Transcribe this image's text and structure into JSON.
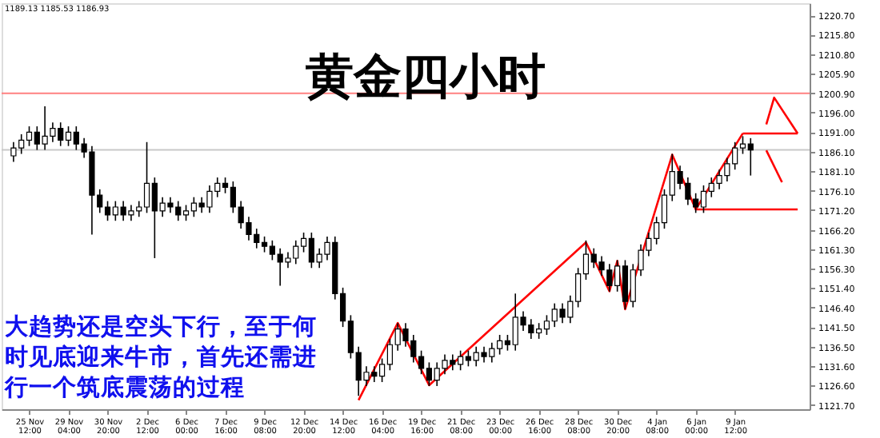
{
  "chart_data": {
    "type": "candlestick",
    "title": "黄金四小时",
    "annotations": [
      "1189.13 1185.53 1186.93",
      "大趋势还是空头下行，至于何时见底迎来牛市，首先还需进行一个筑底震荡的过程"
    ],
    "categories": [
      null,
      null,
      "25 Nov 12:00",
      null,
      null,
      null,
      null,
      "29 Nov 04:00",
      null,
      null,
      null,
      null,
      "30 Nov 20:00",
      null,
      null,
      null,
      null,
      "2 Dec 12:00",
      null,
      null,
      null,
      null,
      "6 Dec 00:00",
      null,
      null,
      null,
      null,
      "7 Dec 16:00",
      null,
      null,
      null,
      null,
      "9 Dec 08:00",
      null,
      null,
      null,
      null,
      "12 Dec 20:00",
      null,
      null,
      null,
      null,
      "14 Dec 12:00",
      null,
      null,
      null,
      null,
      "16 Dec 04:00",
      null,
      null,
      null,
      null,
      "19 Dec 16:00",
      null,
      null,
      null,
      null,
      "21 Dec 08:00",
      null,
      null,
      null,
      null,
      "23 Dec 00:00",
      null,
      null,
      null,
      null,
      "26 Dec 16:00",
      null,
      null,
      null,
      null,
      "28 Dec 08:00",
      null,
      null,
      null,
      null,
      "30 Dec 20:00",
      null,
      null,
      null,
      null,
      "4 Jan 08:00",
      null,
      null,
      null,
      null,
      "6 Jan 00:00",
      null,
      null,
      null,
      null,
      "9 Jan 12:00",
      null,
      null,
      null,
      null,
      null,
      null,
      null,
      null
    ],
    "ohlc": [
      [
        1185,
        1188.5,
        1183.5,
        1187
      ],
      [
        1187,
        1190.5,
        1185.5,
        1189
      ],
      [
        1189,
        1192.5,
        1187.5,
        1191
      ],
      [
        1191,
        1192.5,
        1186.5,
        1188
      ],
      [
        1188,
        1197.6,
        1186.5,
        1190
      ],
      [
        1190,
        1193.5,
        1188.5,
        1192
      ],
      [
        1192,
        1193.5,
        1187.5,
        1189
      ],
      [
        1189,
        1192.5,
        1187.5,
        1191
      ],
      [
        1191,
        1192.5,
        1186.5,
        1188
      ],
      [
        1188,
        1189.5,
        1184.5,
        1186
      ],
      [
        1186,
        1187.5,
        1165,
        1175
      ],
      [
        1175,
        1176.5,
        1170.5,
        1172
      ],
      [
        1172,
        1173.5,
        1168.5,
        1170
      ],
      [
        1170,
        1173.5,
        1168.5,
        1172
      ],
      [
        1172,
        1173.5,
        1168.5,
        1170
      ],
      [
        1170,
        1172.5,
        1168.5,
        1171
      ],
      [
        1171,
        1173.5,
        1169.5,
        1172
      ],
      [
        1172,
        1188.5,
        1170.5,
        1178
      ],
      [
        1178,
        1179.5,
        1159,
        1171
      ],
      [
        1171,
        1174.5,
        1169.5,
        1173
      ],
      [
        1173,
        1174.5,
        1170.5,
        1172
      ],
      [
        1172,
        1173.5,
        1168.5,
        1170
      ],
      [
        1170,
        1172.5,
        1168.5,
        1171
      ],
      [
        1171,
        1174.5,
        1169.5,
        1173
      ],
      [
        1173,
        1174.5,
        1170.5,
        1172
      ],
      [
        1172,
        1177.5,
        1170.5,
        1176
      ],
      [
        1176,
        1179.5,
        1174.5,
        1178
      ],
      [
        1178,
        1179.5,
        1175.5,
        1177
      ],
      [
        1177,
        1178.5,
        1170.5,
        1172
      ],
      [
        1172,
        1173.5,
        1166.5,
        1168
      ],
      [
        1168,
        1169.5,
        1163.5,
        1165
      ],
      [
        1165,
        1166.5,
        1161.5,
        1163
      ],
      [
        1163,
        1164.5,
        1160.5,
        1162
      ],
      [
        1162,
        1163.5,
        1158.5,
        1160
      ],
      [
        1160,
        1161.5,
        1152,
        1158
      ],
      [
        1158,
        1160.5,
        1156.5,
        1159
      ],
      [
        1159,
        1163.5,
        1157.5,
        1162
      ],
      [
        1162,
        1165.5,
        1160.5,
        1164
      ],
      [
        1164,
        1165.5,
        1156.5,
        1158
      ],
      [
        1158,
        1161.5,
        1156.5,
        1160
      ],
      [
        1160,
        1164.5,
        1158.5,
        1163
      ],
      [
        1163,
        1164.5,
        1148.5,
        1150
      ],
      [
        1150,
        1151.5,
        1141.5,
        1143
      ],
      [
        1143,
        1144.5,
        1133.5,
        1135
      ],
      [
        1135,
        1136.5,
        1124,
        1128
      ],
      [
        1128,
        1131.5,
        1126.5,
        1130
      ],
      [
        1130,
        1131.5,
        1127.5,
        1129
      ],
      [
        1129,
        1133.5,
        1127.5,
        1132
      ],
      [
        1132,
        1138.5,
        1130.5,
        1137
      ],
      [
        1137,
        1142.5,
        1135.5,
        1141
      ],
      [
        1141,
        1142.5,
        1136.5,
        1138
      ],
      [
        1138,
        1139.5,
        1132.5,
        1134
      ],
      [
        1134,
        1135.5,
        1129.5,
        1131
      ],
      [
        1131,
        1132.5,
        1126.5,
        1128
      ],
      [
        1128,
        1132.5,
        1126.5,
        1131
      ],
      [
        1131,
        1134.5,
        1129.5,
        1133
      ],
      [
        1133,
        1134.5,
        1130.5,
        1132
      ],
      [
        1132,
        1135.5,
        1130.5,
        1134
      ],
      [
        1134,
        1135.5,
        1131.5,
        1133
      ],
      [
        1133,
        1136.5,
        1131.5,
        1135
      ],
      [
        1135,
        1136.5,
        1132.5,
        1134
      ],
      [
        1134,
        1137.5,
        1132.5,
        1136
      ],
      [
        1136,
        1139.5,
        1134.5,
        1138
      ],
      [
        1138,
        1139.5,
        1135.5,
        1137
      ],
      [
        1137,
        1150,
        1135.5,
        1144
      ],
      [
        1144,
        1145.5,
        1140.5,
        1142
      ],
      [
        1142,
        1143.5,
        1138.5,
        1140
      ],
      [
        1140,
        1142.5,
        1138.5,
        1141
      ],
      [
        1141,
        1144.5,
        1139.5,
        1143
      ],
      [
        1143,
        1147.5,
        1141.5,
        1146
      ],
      [
        1146,
        1147.5,
        1142.5,
        1144
      ],
      [
        1144,
        1149.5,
        1142.5,
        1148
      ],
      [
        1148,
        1156.5,
        1146.5,
        1155
      ],
      [
        1155,
        1163.5,
        1153.5,
        1160
      ],
      [
        1160,
        1161.5,
        1156.5,
        1158
      ],
      [
        1158,
        1159.5,
        1154.5,
        1156
      ],
      [
        1156,
        1157.5,
        1150.5,
        1152
      ],
      [
        1152,
        1158.5,
        1150.5,
        1157
      ],
      [
        1157,
        1158.5,
        1146,
        1148
      ],
      [
        1148,
        1157.5,
        1146.5,
        1156
      ],
      [
        1156,
        1162.5,
        1154.5,
        1161
      ],
      [
        1161,
        1165.5,
        1159.5,
        1164
      ],
      [
        1164,
        1169.5,
        1162.5,
        1168
      ],
      [
        1168,
        1176.5,
        1166.5,
        1175
      ],
      [
        1175,
        1185.5,
        1173.5,
        1181
      ],
      [
        1181,
        1182.5,
        1176.5,
        1178
      ],
      [
        1178,
        1179.5,
        1172.5,
        1174
      ],
      [
        1174,
        1175.5,
        1170.5,
        1172
      ],
      [
        1172,
        1177.5,
        1170.5,
        1176
      ],
      [
        1176,
        1179.5,
        1174.5,
        1178
      ],
      [
        1178,
        1181.5,
        1176.5,
        1180
      ],
      [
        1180,
        1184.5,
        1178.5,
        1183
      ],
      [
        1183,
        1188.5,
        1181.5,
        1187
      ],
      [
        1187,
        1190,
        1185.5,
        1188
      ],
      [
        1188,
        1189.5,
        1180,
        1186.5
      ],
      null,
      null,
      null,
      null,
      null,
      null
    ],
    "series": [
      {
        "type": "line",
        "color": "#ff0000",
        "values": [
          null,
          null,
          null,
          null,
          null,
          null,
          null,
          null,
          null,
          null,
          null,
          null,
          null,
          null,
          null,
          null,
          null,
          null,
          null,
          null,
          null,
          null,
          null,
          null,
          null,
          null,
          null,
          null,
          null,
          null,
          null,
          null,
          null,
          null,
          null,
          null,
          null,
          null,
          null,
          null,
          null,
          null,
          null,
          null,
          1122.9,
          null,
          null,
          null,
          null,
          1142.5,
          null,
          null,
          null,
          1126.7,
          null,
          null,
          null,
          null,
          null,
          null,
          null,
          null,
          null,
          null,
          null,
          null,
          null,
          null,
          null,
          null,
          null,
          null,
          null,
          1163,
          null,
          null,
          1150.6,
          1158.3,
          1146,
          null,
          null,
          null,
          null,
          null,
          1185.3,
          null,
          null,
          1171.4,
          null,
          null,
          null,
          null,
          null,
          1190.7,
          null,
          null,
          null,
          null,
          null,
          null,
          null
        ]
      },
      {
        "type": "line",
        "color": "#ff0000",
        "values": [
          null,
          null,
          null,
          null,
          null,
          null,
          null,
          null,
          null,
          null,
          null,
          null,
          null,
          null,
          null,
          null,
          null,
          null,
          null,
          null,
          null,
          null,
          null,
          null,
          null,
          null,
          null,
          null,
          null,
          null,
          null,
          null,
          null,
          null,
          null,
          null,
          null,
          null,
          null,
          null,
          null,
          null,
          null,
          null,
          null,
          null,
          null,
          null,
          null,
          null,
          null,
          null,
          null,
          null,
          null,
          null,
          null,
          null,
          null,
          null,
          null,
          null,
          null,
          null,
          null,
          null,
          null,
          null,
          null,
          null,
          null,
          null,
          null,
          null,
          null,
          null,
          null,
          null,
          null,
          null,
          null,
          null,
          null,
          null,
          null,
          null,
          null,
          null,
          null,
          null,
          null,
          null,
          null,
          1190.7,
          null,
          null,
          null,
          null,
          null,
          null,
          1190.7
        ]
      },
      {
        "type": "line",
        "color": "#ff0000",
        "values": [
          null,
          null,
          null,
          null,
          null,
          null,
          null,
          null,
          null,
          null,
          null,
          null,
          null,
          null,
          null,
          null,
          null,
          null,
          null,
          null,
          null,
          null,
          null,
          null,
          null,
          null,
          null,
          null,
          null,
          null,
          null,
          null,
          null,
          null,
          null,
          null,
          null,
          null,
          null,
          null,
          null,
          null,
          null,
          null,
          null,
          null,
          null,
          null,
          null,
          null,
          null,
          null,
          null,
          null,
          null,
          null,
          null,
          null,
          null,
          null,
          null,
          null,
          null,
          null,
          null,
          null,
          null,
          null,
          null,
          null,
          null,
          null,
          null,
          null,
          null,
          null,
          null,
          null,
          null,
          null,
          null,
          null,
          null,
          null,
          null,
          null,
          null,
          1171.4,
          null,
          null,
          null,
          null,
          null,
          null,
          null,
          null,
          null,
          null,
          null,
          null,
          1171.4
        ]
      },
      {
        "type": "line",
        "color": "#ff0000",
        "values": [
          null,
          null,
          null,
          null,
          null,
          null,
          null,
          null,
          null,
          null,
          null,
          null,
          null,
          null,
          null,
          null,
          null,
          null,
          null,
          null,
          null,
          null,
          null,
          null,
          null,
          null,
          null,
          null,
          null,
          null,
          null,
          null,
          null,
          null,
          null,
          null,
          null,
          null,
          null,
          null,
          null,
          null,
          null,
          null,
          null,
          null,
          null,
          null,
          null,
          null,
          null,
          null,
          null,
          null,
          null,
          null,
          null,
          null,
          null,
          null,
          null,
          null,
          null,
          null,
          null,
          null,
          null,
          null,
          null,
          null,
          null,
          null,
          null,
          null,
          null,
          null,
          null,
          null,
          null,
          null,
          null,
          null,
          null,
          null,
          null,
          null,
          null,
          null,
          null,
          null,
          null,
          null,
          null,
          null,
          null,
          null,
          1193,
          1199.8,
          null,
          null,
          1190.7
        ]
      },
      {
        "type": "line",
        "color": "#ff0000",
        "values": [
          null,
          null,
          null,
          null,
          null,
          null,
          null,
          null,
          null,
          null,
          null,
          null,
          null,
          null,
          null,
          null,
          null,
          null,
          null,
          null,
          null,
          null,
          null,
          null,
          null,
          null,
          null,
          null,
          null,
          null,
          null,
          null,
          null,
          null,
          null,
          null,
          null,
          null,
          null,
          null,
          null,
          null,
          null,
          null,
          null,
          null,
          null,
          null,
          null,
          null,
          null,
          null,
          null,
          null,
          null,
          null,
          null,
          null,
          null,
          null,
          null,
          null,
          null,
          null,
          null,
          null,
          null,
          null,
          null,
          null,
          null,
          null,
          null,
          null,
          null,
          null,
          null,
          null,
          null,
          null,
          null,
          null,
          null,
          null,
          null,
          null,
          null,
          null,
          null,
          null,
          null,
          null,
          null,
          null,
          null,
          null,
          1186.4,
          null,
          1178.3,
          null,
          null
        ]
      }
    ],
    "ref_lines": [
      {
        "axis": "y",
        "value": 1200.9,
        "color": "#ff8080"
      },
      {
        "axis": "y",
        "value": 1186.5,
        "color": "#c8c8c8"
      }
    ],
    "ylim": [
      1120.6,
      1223.8
    ],
    "yticks": [
      {
        "value": 1220.7,
        "label": "1220.70"
      },
      {
        "value": 1215.8,
        "label": "1215.80"
      },
      {
        "value": 1210.8,
        "label": "1210.80"
      },
      {
        "value": 1205.9,
        "label": "1205.90"
      },
      {
        "value": 1200.9,
        "label": "1200.90"
      },
      {
        "value": 1196.0,
        "label": "1196.00"
      },
      {
        "value": 1191.0,
        "label": "1191.00"
      },
      {
        "value": 1186.1,
        "label": "1186.10"
      },
      {
        "value": 1181.1,
        "label": "1181.10"
      },
      {
        "value": 1176.1,
        "label": "1176.10"
      },
      {
        "value": 1171.2,
        "label": "1171.20"
      },
      {
        "value": 1166.2,
        "label": "1166.20"
      },
      {
        "value": 1161.3,
        "label": "1161.30"
      },
      {
        "value": 1156.3,
        "label": "1156.30"
      },
      {
        "value": 1151.4,
        "label": "1151.40"
      },
      {
        "value": 1146.4,
        "label": "1146.40"
      },
      {
        "value": 1141.5,
        "label": "1141.50"
      },
      {
        "value": 1136.5,
        "label": "1136.50"
      },
      {
        "value": 1131.6,
        "label": "1131.60"
      },
      {
        "value": 1126.6,
        "label": "1126.60"
      },
      {
        "value": 1121.7,
        "label": "1121.70"
      }
    ]
  }
}
